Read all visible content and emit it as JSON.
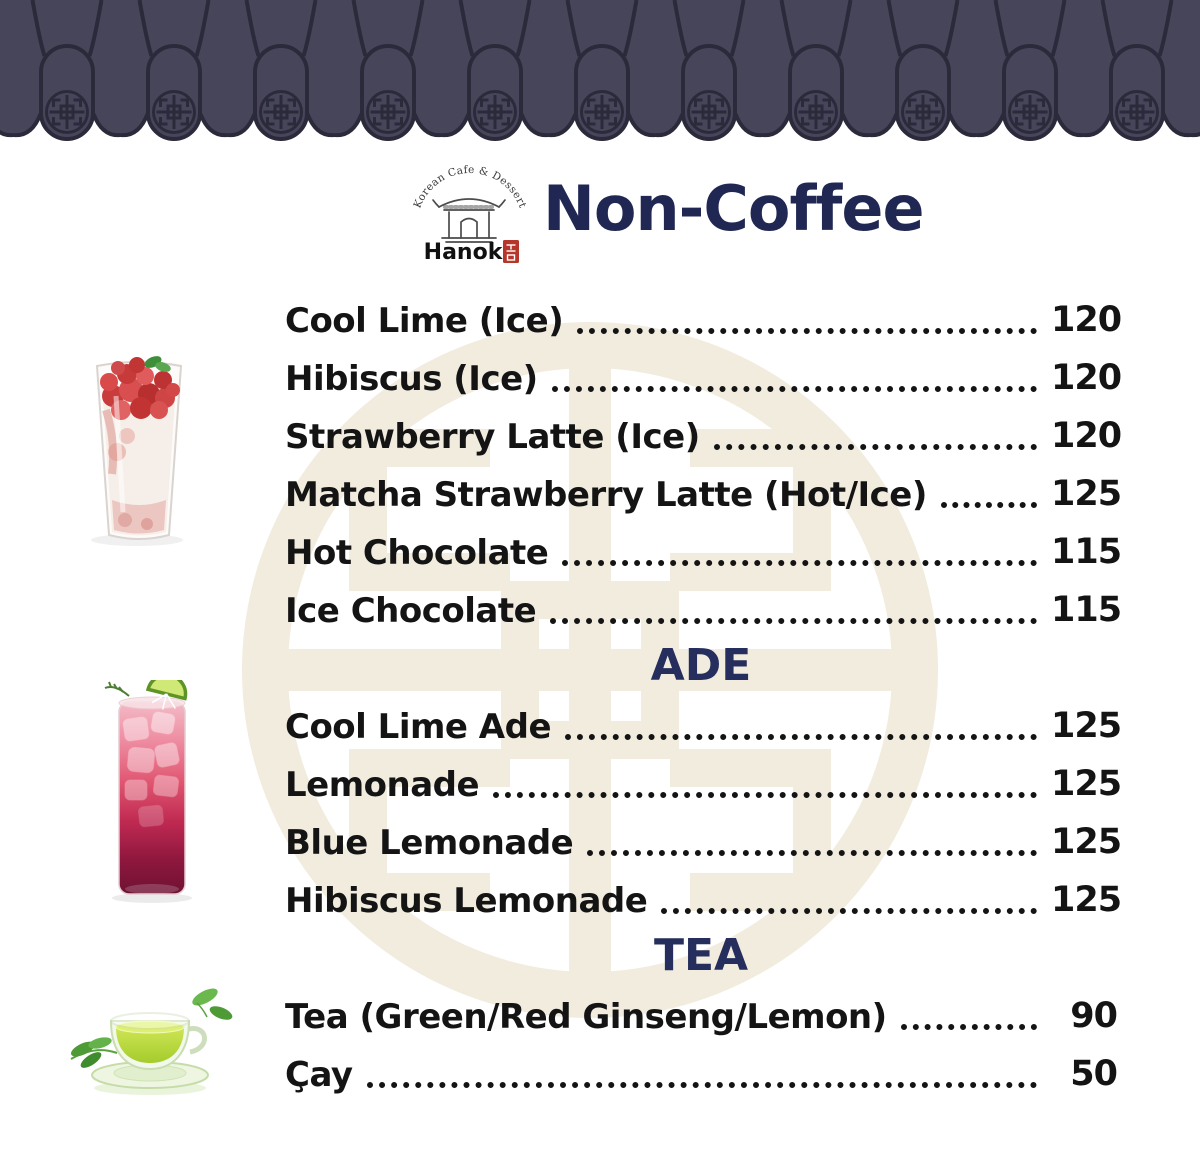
{
  "brand": {
    "tagline": "Korean Cafe & Dessert",
    "name": "Hanok",
    "seal_text": "한옥"
  },
  "title": "Non-Coffee",
  "menu": {
    "sections": [
      {
        "header": "",
        "items": [
          {
            "name": "Cool Lime (Ice)",
            "price": "120"
          },
          {
            "name": "Hibiscus (Ice)",
            "price": "120"
          },
          {
            "name": "Strawberry Latte (Ice)",
            "price": "120"
          },
          {
            "name": "Matcha Strawberry Latte (Hot/Ice)",
            "price": "125"
          },
          {
            "name": "Hot Chocolate",
            "price": "115"
          },
          {
            "name": "Ice Chocolate",
            "price": "115"
          }
        ]
      },
      {
        "header": "ADE",
        "items": [
          {
            "name": "Cool Lime Ade",
            "price": "125"
          },
          {
            "name": "Lemonade",
            "price": "125"
          },
          {
            "name": "Blue Lemonade",
            "price": "125"
          },
          {
            "name": "Hibiscus Lemonade",
            "price": "125"
          }
        ]
      },
      {
        "header": "TEA",
        "items": [
          {
            "name": "Tea (Green/Red Ginseng/Lemon)",
            "price": "90"
          },
          {
            "name": "Çay",
            "price": "50"
          }
        ]
      }
    ]
  },
  "images": [
    {
      "label": "strawberry-latte-photo"
    },
    {
      "label": "berry-ade-photo"
    },
    {
      "label": "green-tea-photo"
    }
  ],
  "colors": {
    "navy_title": "#1f2752",
    "navy_section": "#252e5c",
    "tile_fill": "#46455a",
    "tile_outline": "#2b2a3a",
    "watermark": "#f2ecdf",
    "text": "#141414",
    "seal_red": "#b5372b"
  }
}
